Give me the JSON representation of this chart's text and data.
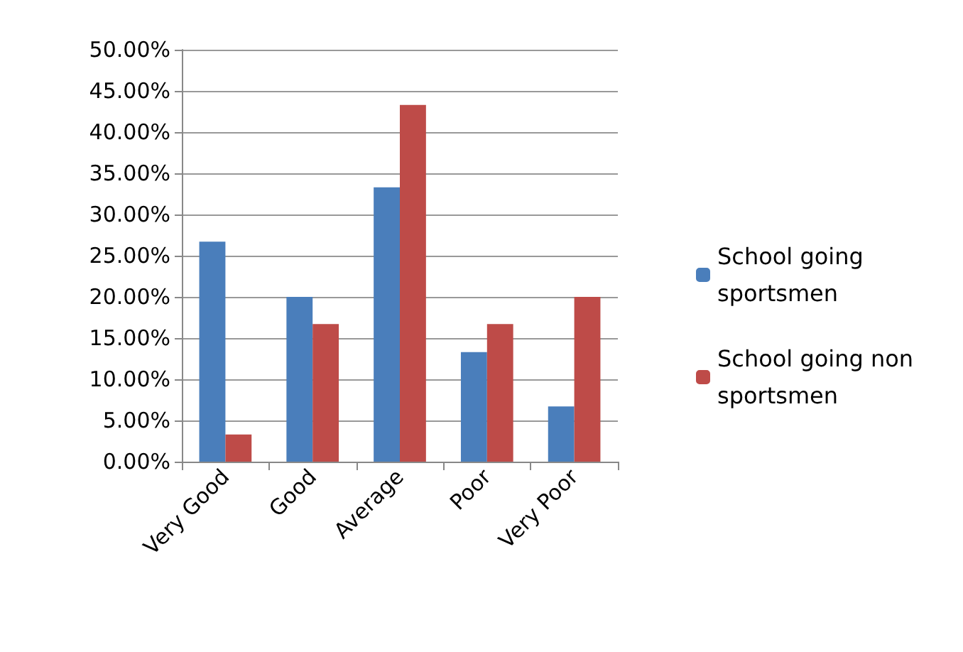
{
  "chart_data": {
    "type": "bar",
    "categories": [
      "Very Good",
      "Good",
      "Average",
      "Poor",
      "Very Poor"
    ],
    "series": [
      {
        "name": "School going sportsmen",
        "color": "#4a7ebb",
        "values": [
          26.7,
          20,
          33.3,
          13.3,
          6.7
        ]
      },
      {
        "name": "School going non sportsmen",
        "color": "#be4b48",
        "values": [
          3.3,
          16.7,
          43.3,
          16.7,
          20
        ]
      }
    ],
    "ylim": [
      0,
      50
    ],
    "yticks": [
      {
        "value": 0,
        "label": "0.00%"
      },
      {
        "value": 5,
        "label": "5.00%"
      },
      {
        "value": 10,
        "label": "10.00%"
      },
      {
        "value": 15,
        "label": "15.00%"
      },
      {
        "value": 20,
        "label": "20.00%"
      },
      {
        "value": 25,
        "label": "25.00%"
      },
      {
        "value": 30,
        "label": "30.00%"
      },
      {
        "value": 35,
        "label": "35.00%"
      },
      {
        "value": 40,
        "label": "40.00%"
      },
      {
        "value": 45,
        "label": "45.00%"
      },
      {
        "value": 50,
        "label": "50.00%"
      }
    ],
    "grid": "y",
    "legend": "right"
  }
}
